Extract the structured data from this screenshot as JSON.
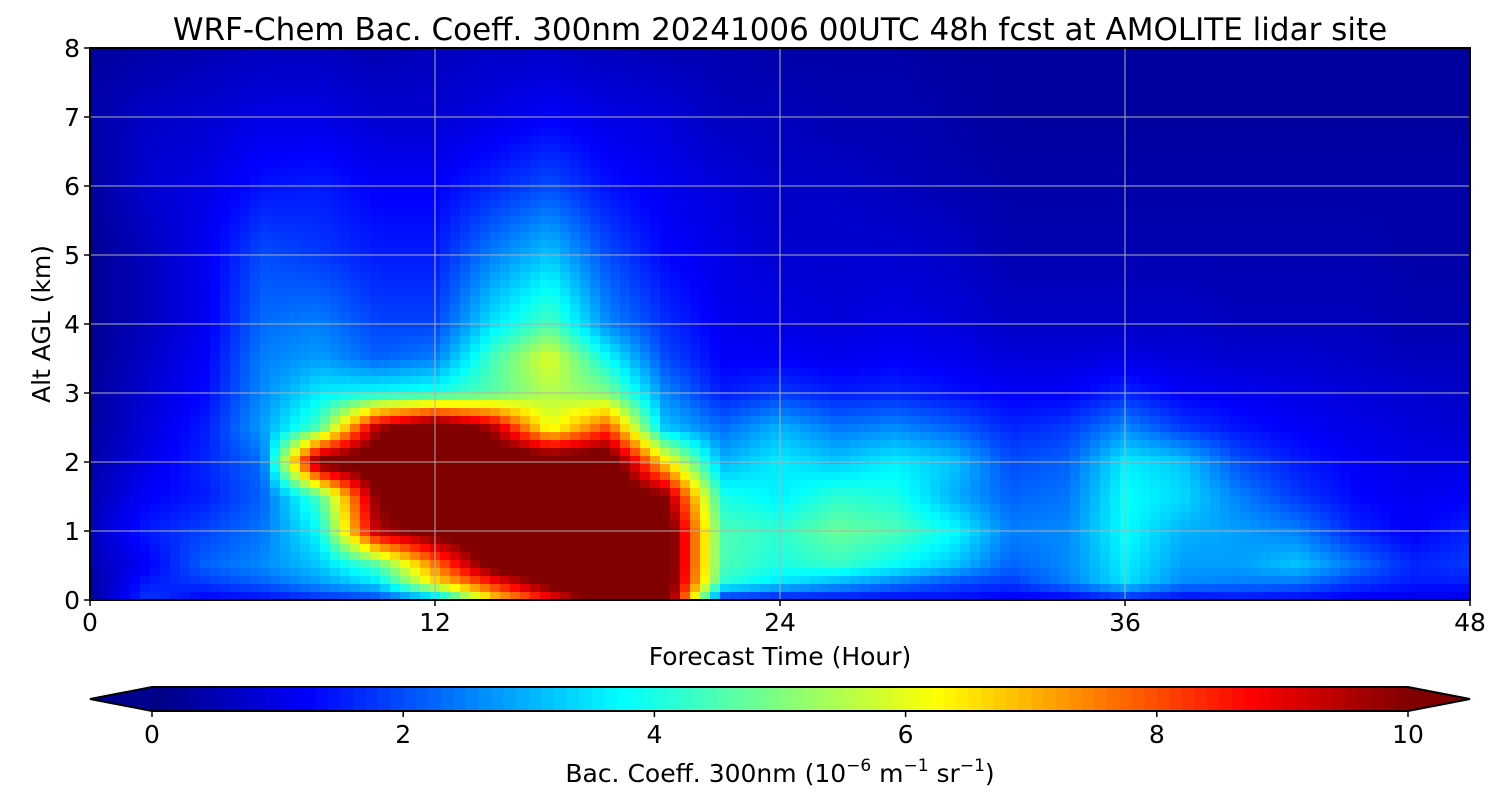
{
  "chart_data": {
    "type": "heatmap",
    "title": "WRF-Chem Bac. Coeff. 300nm  20241006 00UTC 48h fcst at AMOLITE lidar site",
    "xlabel": "Forecast Time (Hour)",
    "ylabel": "Alt AGL (km)",
    "xlim": [
      0,
      48
    ],
    "ylim": [
      0,
      8
    ],
    "xticks": [
      0,
      12,
      24,
      36,
      48
    ],
    "yticks": [
      0,
      1,
      2,
      3,
      4,
      5,
      6,
      7,
      8
    ],
    "grid": true,
    "colormap": "jet",
    "colorbar": {
      "label_main": "Bac. Coeff. 300nm  (10",
      "label_exp1": "−6",
      "label_mid": " m",
      "label_exp2": "−1",
      "label_mid2": " sr",
      "label_exp3": "−1",
      "label_end": ")",
      "range": [
        0,
        10
      ],
      "ticks": [
        0,
        2,
        4,
        6,
        8,
        10
      ],
      "extend": "both",
      "orientation": "horizontal"
    },
    "x": [
      0,
      2,
      4,
      6,
      8,
      10,
      12,
      14,
      16,
      18,
      20,
      22,
      24,
      26,
      28,
      30,
      32,
      34,
      36,
      38,
      40,
      42,
      44,
      46,
      48
    ],
    "y": [
      0,
      0.25,
      0.5,
      1,
      1.5,
      2,
      2.5,
      3,
      3.5,
      4,
      5,
      6,
      7,
      8
    ],
    "z": [
      [
        0.3,
        1.8,
        1.2,
        1.3,
        1.6,
        1.8,
        2.8,
        6.5,
        8.5,
        11,
        11,
        1.5,
        1.3,
        1.3,
        1.2,
        1.3,
        1.1,
        1.1,
        1.5,
        1.2,
        1.3,
        1.2,
        1.1,
        1.0,
        1.0
      ],
      [
        0.3,
        1.5,
        1.8,
        2.2,
        2.8,
        3.5,
        6.5,
        8.5,
        10.5,
        11,
        11,
        4.2,
        3.5,
        3.0,
        2.5,
        2.0,
        1.8,
        2.5,
        3.5,
        2.6,
        2.5,
        2.4,
        1.8,
        1.5,
        1.5
      ],
      [
        0.5,
        1.2,
        2.2,
        2.6,
        3.2,
        4.5,
        7.5,
        10.5,
        11,
        11,
        11,
        4.5,
        4.0,
        4.3,
        3.8,
        3.2,
        2.2,
        2.6,
        3.6,
        2.8,
        2.8,
        3.2,
        2.4,
        1.6,
        1.8
      ],
      [
        0.6,
        1.5,
        1.9,
        2.4,
        3.8,
        9.5,
        10.5,
        11,
        11,
        11,
        11,
        4.5,
        4.2,
        4.8,
        4.5,
        3.8,
        2.5,
        2.6,
        3.8,
        3.0,
        2.8,
        2.5,
        1.6,
        1.2,
        1.6
      ],
      [
        0.5,
        1.2,
        1.5,
        2.2,
        4.5,
        10.0,
        11,
        11,
        11,
        11,
        10.0,
        4.0,
        3.6,
        4.2,
        4.0,
        3.0,
        2.2,
        2.4,
        3.8,
        3.4,
        2.5,
        1.8,
        1.3,
        1.1,
        1.2
      ],
      [
        0.4,
        1.0,
        1.6,
        2.3,
        10.5,
        11,
        11,
        11,
        11,
        11,
        6.5,
        3.0,
        3.6,
        3.2,
        3.6,
        3.2,
        2.0,
        2.2,
        3.6,
        3.2,
        2.0,
        1.5,
        1.2,
        1.0,
        1.0
      ],
      [
        0.3,
        0.9,
        1.5,
        2.8,
        4.5,
        9.5,
        11,
        9.5,
        6.0,
        8.0,
        3.2,
        2.3,
        3.0,
        2.4,
        2.6,
        2.2,
        1.6,
        1.8,
        2.6,
        1.8,
        1.4,
        1.2,
        1.0,
        0.9,
        0.8
      ],
      [
        0.3,
        0.8,
        1.3,
        2.6,
        3.6,
        3.8,
        4.0,
        4.6,
        5.5,
        5.0,
        2.6,
        1.5,
        1.8,
        1.5,
        1.6,
        1.4,
        1.2,
        1.2,
        1.6,
        1.2,
        1.1,
        1.0,
        0.9,
        0.8,
        0.7
      ],
      [
        0.2,
        0.7,
        1.2,
        2.5,
        2.8,
        2.2,
        2.5,
        4.4,
        6.0,
        3.8,
        2.0,
        1.2,
        1.2,
        1.1,
        1.2,
        1.1,
        0.9,
        0.9,
        1.0,
        0.9,
        0.8,
        0.8,
        0.7,
        0.6,
        0.6
      ],
      [
        0.2,
        0.6,
        1.1,
        2.3,
        2.5,
        1.9,
        1.9,
        3.5,
        4.5,
        2.6,
        1.7,
        1.1,
        1.0,
        0.9,
        1.0,
        0.9,
        0.7,
        0.7,
        0.7,
        0.7,
        0.6,
        0.6,
        0.6,
        0.5,
        0.5
      ],
      [
        0.2,
        0.6,
        1.1,
        2.0,
        1.8,
        1.5,
        1.5,
        2.5,
        3.2,
        2.0,
        1.3,
        1.0,
        0.8,
        0.8,
        0.8,
        0.7,
        0.5,
        0.5,
        0.5,
        0.5,
        0.5,
        0.5,
        0.5,
        0.4,
        0.4
      ],
      [
        0.3,
        0.8,
        1.0,
        1.4,
        1.5,
        1.2,
        1.2,
        1.6,
        2.0,
        1.4,
        1.1,
        0.9,
        0.7,
        0.7,
        0.6,
        0.5,
        0.4,
        0.4,
        0.4,
        0.4,
        0.4,
        0.4,
        0.4,
        0.4,
        0.4
      ],
      [
        0.4,
        0.7,
        0.8,
        1.0,
        1.0,
        0.8,
        0.8,
        1.0,
        1.2,
        1.0,
        0.9,
        0.6,
        0.6,
        0.5,
        0.5,
        0.4,
        0.3,
        0.3,
        0.3,
        0.3,
        0.3,
        0.3,
        0.3,
        0.3,
        0.3
      ],
      [
        0.3,
        0.4,
        0.5,
        0.6,
        0.6,
        0.5,
        0.6,
        0.7,
        0.7,
        0.6,
        0.5,
        0.5,
        0.4,
        0.4,
        0.4,
        0.3,
        0.3,
        0.3,
        0.3,
        0.3,
        0.3,
        0.3,
        0.3,
        0.3,
        0.3
      ]
    ]
  }
}
